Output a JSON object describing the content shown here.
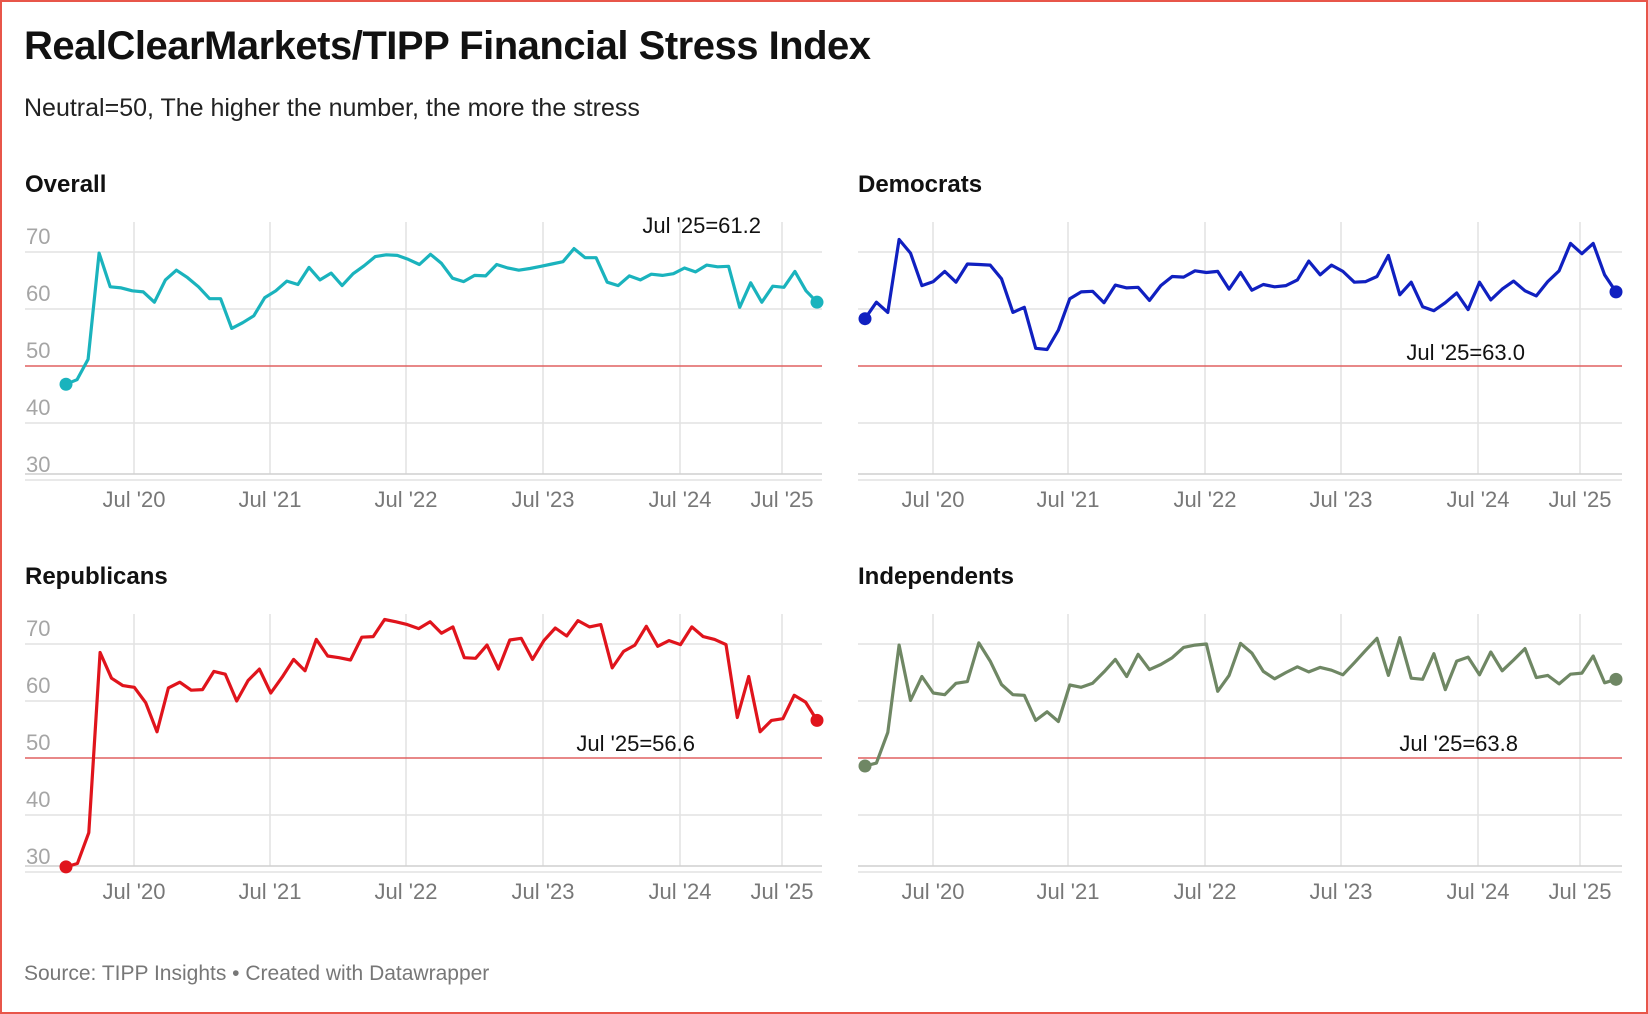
{
  "title": "RealClearMarkets/TIPP Financial Stress Index",
  "subtitle": "Neutral=50, The higher the number, the more the stress",
  "footer": "Source: TIPP Insights • Created with Datawrapper",
  "chart_data": [
    {
      "type": "line",
      "title": "Overall",
      "color": "#1ab3bd",
      "ylim": [
        30,
        70
      ],
      "yticks": [
        30,
        40,
        50,
        60,
        70
      ],
      "neutral": 50,
      "xticks": [
        "Jul '20",
        "Jul '21",
        "Jul '22",
        "Jul '23",
        "Jul '24",
        "Jul '25"
      ],
      "annotation": "Jul '25=61.2",
      "values": [
        46.8,
        47.6,
        51.2,
        69.8,
        63.9,
        63.7,
        63.2,
        63.0,
        61.2,
        65.1,
        66.8,
        65.5,
        63.9,
        61.8,
        61.8,
        56.6,
        57.6,
        58.8,
        62.0,
        63.2,
        64.9,
        64.3,
        67.3,
        65.1,
        66.3,
        64.1,
        66.2,
        67.6,
        69.2,
        69.5,
        69.4,
        68.7,
        67.8,
        69.6,
        68.0,
        65.4,
        64.8,
        65.9,
        65.8,
        67.8,
        67.2,
        66.8,
        67.1,
        67.5,
        67.9,
        68.3,
        70.6,
        69.0,
        69.0,
        64.7,
        64.1,
        65.8,
        65.1,
        66.1,
        65.9,
        66.2,
        67.2,
        66.5,
        67.7,
        67.4,
        67.5,
        60.3,
        64.6,
        61.2,
        64.0,
        63.8,
        66.6,
        63.2,
        61.2
      ]
    },
    {
      "type": "line",
      "title": "Democrats",
      "color": "#1020c0",
      "ylim": [
        30,
        70
      ],
      "yticks": [
        30,
        40,
        50,
        60,
        70
      ],
      "neutral": 50,
      "xticks": [
        "Jul '20",
        "Jul '21",
        "Jul '22",
        "Jul '23",
        "Jul '24",
        "Jul '25"
      ],
      "annotation": "Jul '25=63.0",
      "values": [
        58.3,
        61.2,
        59.4,
        72.2,
        69.8,
        64.1,
        64.8,
        66.6,
        64.7,
        67.9,
        67.8,
        67.7,
        65.3,
        59.4,
        60.3,
        53.1,
        52.9,
        56.3,
        61.8,
        63.0,
        63.1,
        61.1,
        64.2,
        63.7,
        63.8,
        61.5,
        64.1,
        65.7,
        65.6,
        66.7,
        66.4,
        66.6,
        63.5,
        66.4,
        63.3,
        64.3,
        63.9,
        64.1,
        65.1,
        68.4,
        66.0,
        67.7,
        66.6,
        64.7,
        64.8,
        65.7,
        69.4,
        62.5,
        64.7,
        60.4,
        59.7,
        61.1,
        62.8,
        59.9,
        64.7,
        61.6,
        63.5,
        64.9,
        63.2,
        62.3,
        64.8,
        66.7,
        71.5,
        69.7,
        71.5,
        66.0,
        63.0
      ]
    },
    {
      "type": "line",
      "title": "Republicans",
      "color": "#e0141c",
      "ylim": [
        30,
        70
      ],
      "yticks": [
        30,
        40,
        50,
        60,
        70
      ],
      "neutral": 50,
      "xticks": [
        "Jul '20",
        "Jul '21",
        "Jul '22",
        "Jul '23",
        "Jul '24",
        "Jul '25"
      ],
      "annotation": "Jul '25=56.6",
      "values": [
        30.9,
        31.5,
        36.9,
        68.5,
        64.0,
        62.7,
        62.4,
        59.7,
        54.6,
        62.3,
        63.3,
        61.9,
        62.0,
        65.2,
        64.7,
        60.0,
        63.6,
        65.6,
        61.4,
        64.2,
        67.3,
        65.3,
        70.8,
        67.9,
        67.6,
        67.2,
        71.2,
        71.3,
        74.3,
        73.9,
        73.4,
        72.7,
        73.9,
        71.9,
        73.0,
        67.6,
        67.5,
        69.8,
        65.6,
        70.7,
        71.0,
        67.3,
        70.6,
        72.8,
        71.4,
        74.1,
        73.0,
        73.4,
        65.8,
        68.7,
        69.8,
        73.1,
        69.6,
        70.6,
        69.9,
        73.0,
        71.3,
        70.8,
        69.9,
        57.1,
        64.3,
        54.6,
        56.6,
        56.9,
        61.0,
        59.8,
        56.6
      ]
    },
    {
      "type": "line",
      "title": "Independents",
      "color": "#6f8764",
      "ylim": [
        30,
        70
      ],
      "yticks": [
        30,
        40,
        50,
        60,
        70
      ],
      "neutral": 50,
      "xticks": [
        "Jul '20",
        "Jul '21",
        "Jul '22",
        "Jul '23",
        "Jul '24",
        "Jul '25"
      ],
      "annotation": "Jul '25=63.8",
      "values": [
        48.6,
        49.1,
        54.5,
        69.8,
        60.1,
        64.3,
        61.4,
        61.1,
        63.1,
        63.4,
        70.2,
        67.0,
        62.9,
        61.1,
        61.0,
        56.6,
        58.1,
        56.4,
        62.8,
        62.4,
        63.1,
        65.1,
        67.3,
        64.3,
        68.2,
        65.5,
        66.4,
        67.6,
        69.4,
        69.8,
        70.0,
        61.7,
        64.5,
        70.1,
        68.4,
        65.2,
        63.9,
        65.0,
        66.0,
        65.1,
        65.9,
        65.4,
        64.6,
        66.7,
        68.9,
        71.0,
        64.5,
        71.1,
        64.0,
        63.8,
        68.3,
        62.0,
        67.0,
        67.7,
        64.6,
        68.6,
        65.3,
        67.2,
        69.2,
        64.1,
        64.5,
        63.0,
        64.7,
        64.9,
        67.9,
        63.2,
        63.8
      ]
    }
  ]
}
